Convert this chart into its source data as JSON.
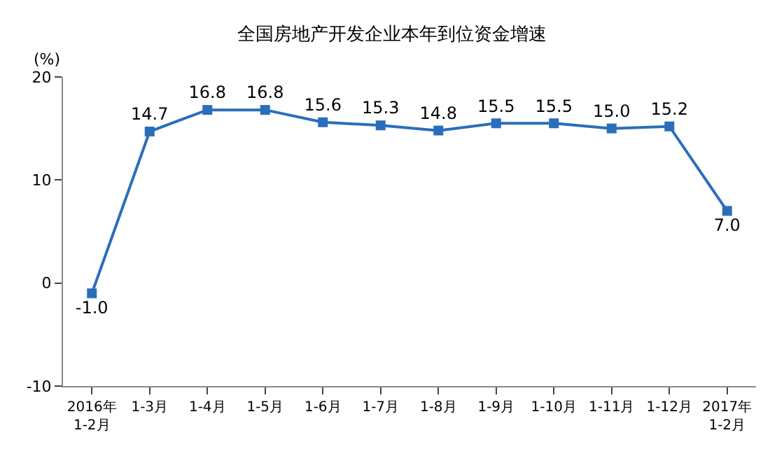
{
  "chart_data": {
    "type": "line",
    "title": "全国房地产开发企业本年到位资金增速",
    "ylabel": "(%)",
    "categories": [
      "2016年\n1-2月",
      "1-3月",
      "1-4月",
      "1-5月",
      "1-6月",
      "1-7月",
      "1-8月",
      "1-9月",
      "1-10月",
      "1-11月",
      "1-12月",
      "2017年\n1-2月"
    ],
    "series": [
      {
        "color": "#2a6ebb",
        "values": [
          -1.0,
          14.7,
          16.8,
          16.8,
          15.6,
          15.3,
          14.8,
          15.5,
          15.5,
          15.0,
          15.2,
          7.0
        ],
        "value_labels": [
          "-1.0",
          "14.7",
          "16.8",
          "16.8",
          "15.6",
          "15.3",
          "14.8",
          "15.5",
          "15.5",
          "15.0",
          "15.2",
          "7.0"
        ]
      }
    ],
    "ylim": [
      -10,
      20
    ],
    "yticks": [
      -10,
      0,
      10,
      20
    ],
    "grid": false,
    "legend": false,
    "marker": "square",
    "line_style": "solid"
  }
}
